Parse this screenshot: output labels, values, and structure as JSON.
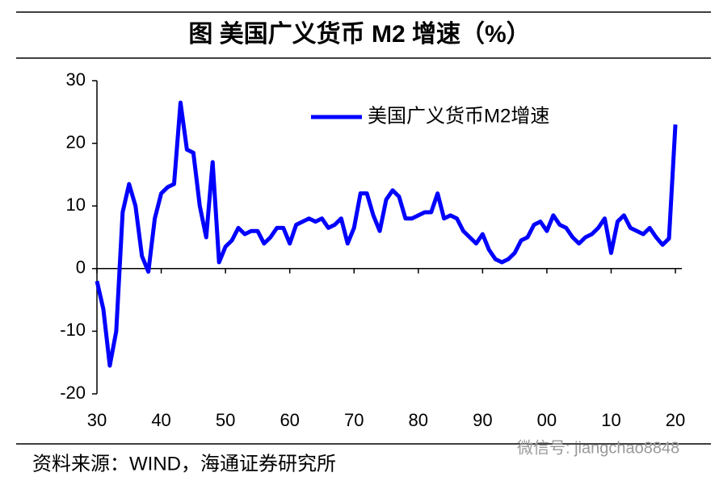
{
  "title": "图  美国广义货币 M2 增速（%）",
  "source": "资料来源：WIND，海通证券研究所",
  "watermark": "微信号: jiangchao8848",
  "chart_data": {
    "type": "line",
    "x": [
      1930,
      1931,
      1932,
      1933,
      1934,
      1935,
      1936,
      1937,
      1938,
      1939,
      1940,
      1941,
      1942,
      1943,
      1944,
      1945,
      1946,
      1947,
      1948,
      1949,
      1950,
      1951,
      1952,
      1953,
      1954,
      1955,
      1956,
      1957,
      1958,
      1959,
      1960,
      1961,
      1962,
      1963,
      1964,
      1965,
      1966,
      1967,
      1968,
      1969,
      1970,
      1971,
      1972,
      1973,
      1974,
      1975,
      1976,
      1977,
      1978,
      1979,
      1980,
      1981,
      1982,
      1983,
      1984,
      1985,
      1986,
      1987,
      1988,
      1989,
      1990,
      1991,
      1992,
      1993,
      1994,
      1995,
      1996,
      1997,
      1998,
      1999,
      2000,
      2001,
      2002,
      2003,
      2004,
      2005,
      2006,
      2007,
      2008,
      2009,
      2010,
      2011,
      2012,
      2013,
      2014,
      2015,
      2016,
      2017,
      2018,
      2019,
      2020
    ],
    "series": [
      {
        "name": "美国广义货币M2增速",
        "color": "#0000ff",
        "values": [
          -2,
          -6.5,
          -15.5,
          -10,
          9,
          13.5,
          10,
          2,
          -0.5,
          8,
          12,
          13,
          13.5,
          26.5,
          19,
          18.5,
          10,
          5,
          17,
          1,
          3.5,
          4.5,
          6.5,
          5.5,
          6,
          6,
          4,
          5,
          6.5,
          6.5,
          4,
          7,
          7.5,
          8,
          7.5,
          8,
          6.5,
          7,
          8,
          4,
          6.5,
          12,
          12,
          8.5,
          6,
          11,
          12.5,
          11.5,
          8,
          8,
          8.5,
          9,
          9,
          12,
          8,
          8.5,
          8,
          6,
          5,
          4,
          5.5,
          3,
          1.5,
          1,
          1.5,
          2.5,
          4.5,
          5,
          7,
          7.5,
          6,
          8.5,
          7,
          6.5,
          5,
          4,
          5,
          5.5,
          6.5,
          8,
          2.5,
          7.5,
          8.5,
          6.5,
          6,
          5.5,
          6.5,
          5,
          3.8,
          4.8,
          23
        ]
      }
    ],
    "xlim": [
      1930,
      2021
    ],
    "xticks": [
      {
        "value": 1930,
        "label": "30"
      },
      {
        "value": 1940,
        "label": "40"
      },
      {
        "value": 1950,
        "label": "50"
      },
      {
        "value": 1960,
        "label": "60"
      },
      {
        "value": 1970,
        "label": "70"
      },
      {
        "value": 1980,
        "label": "80"
      },
      {
        "value": 1990,
        "label": "90"
      },
      {
        "value": 2000,
        "label": "00"
      },
      {
        "value": 2010,
        "label": "10"
      },
      {
        "value": 2020,
        "label": "20"
      }
    ],
    "ylim": [
      -20,
      30
    ],
    "yticks": [
      30,
      20,
      10,
      0,
      -10,
      -20
    ],
    "legend": "top-right"
  }
}
